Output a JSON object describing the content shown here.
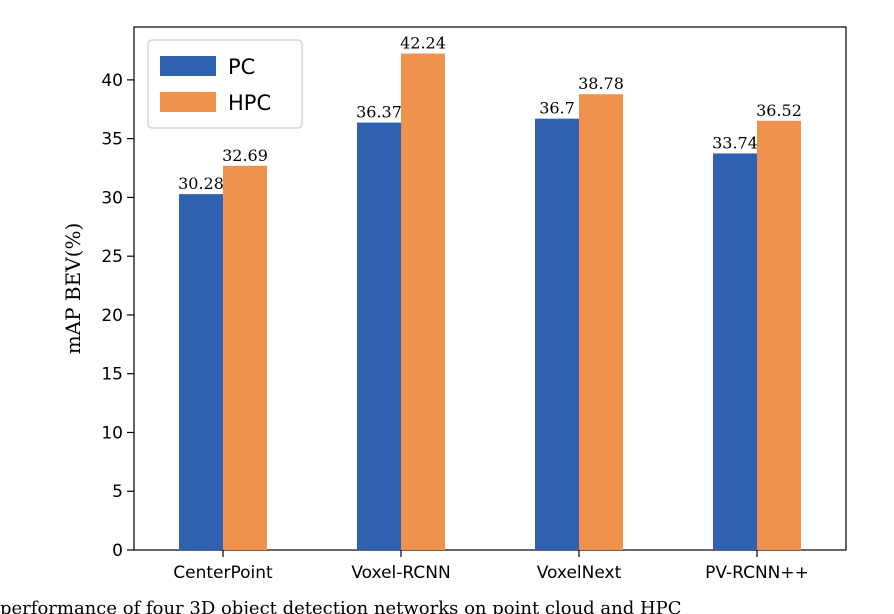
{
  "chart_data": {
    "type": "bar",
    "title": "",
    "xlabel": "",
    "ylabel": "mAP BEV(%)",
    "categories": [
      "CenterPoint",
      "Voxel-RCNN",
      "VoxelNext",
      "PV-RCNN++"
    ],
    "series": [
      {
        "name": "PC",
        "color": "#3060b0",
        "values": [
          30.28,
          36.37,
          36.7,
          33.74
        ],
        "labels": [
          "30.28",
          "36.37",
          "36.7",
          "33.74"
        ]
      },
      {
        "name": "HPC",
        "color": "#f0924e",
        "values": [
          32.69,
          42.24,
          38.78,
          36.52
        ],
        "labels": [
          "32.69",
          "42.24",
          "38.78",
          "36.52"
        ]
      }
    ],
    "ylim": [
      0,
      44.5
    ],
    "yticks": [
      0,
      5,
      10,
      15,
      20,
      25,
      30,
      35,
      40
    ],
    "grid": false,
    "legend_position": "top-left"
  },
  "caption": "performance of four 3D object detection networks on point cloud and HPC"
}
